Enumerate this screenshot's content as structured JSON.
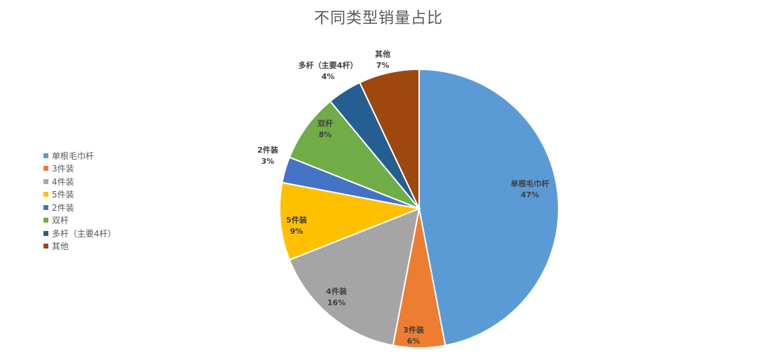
{
  "chart_data": {
    "type": "pie",
    "title": "不同类型销量占比",
    "slices": [
      {
        "label": "单根毛巾杆",
        "value": 47,
        "display": "47%",
        "color": "#5B9BD5"
      },
      {
        "label": "3件装",
        "value": 6,
        "display": "6%",
        "color": "#ED7D31"
      },
      {
        "label": "4件装",
        "value": 16,
        "display": "16%",
        "color": "#A5A5A5"
      },
      {
        "label": "5件装",
        "value": 9,
        "display": "9%",
        "color": "#FFC000"
      },
      {
        "label": "2件装",
        "value": 3,
        "display": "3%",
        "color": "#4472C4"
      },
      {
        "label": "双杆",
        "value": 8,
        "display": "8%",
        "color": "#70AD47"
      },
      {
        "label": "多杆（主要4杆）",
        "value": 4,
        "display": "4%",
        "color": "#255E91"
      },
      {
        "label": "其他",
        "value": 7,
        "display": "7%",
        "color": "#9E480E"
      }
    ],
    "legend_position": "left"
  }
}
